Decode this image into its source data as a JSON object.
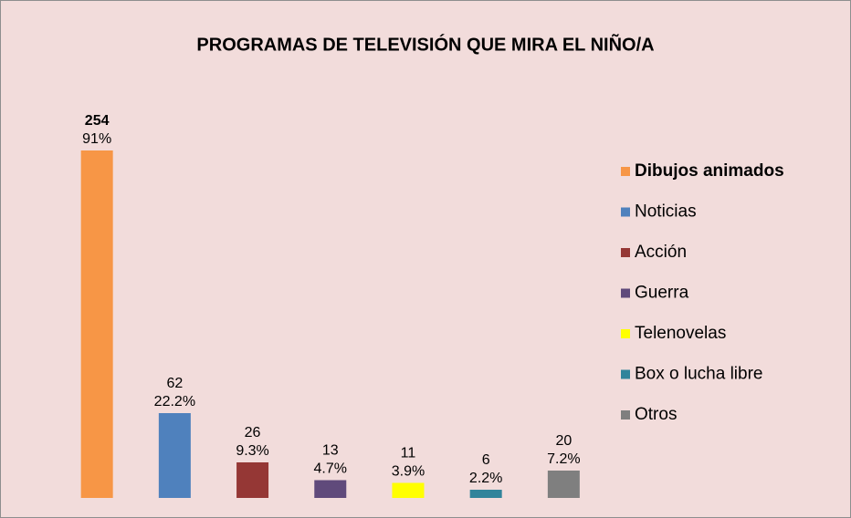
{
  "chart_data": {
    "type": "bar",
    "title": "PROGRAMAS DE TELEVISIÓN QUE MIRA EL NIÑO/A",
    "series": [
      {
        "name": "Dibujos animados",
        "color": "#f79646",
        "values": [
          254
        ],
        "percent_labels": [
          "91%"
        ]
      },
      {
        "name": "Noticias",
        "color": "#4f81bd",
        "values": [
          62
        ],
        "percent_labels": [
          "22.2%"
        ]
      },
      {
        "name": "Acción",
        "color": "#953735",
        "values": [
          26
        ],
        "percent_labels": [
          "9.3%"
        ]
      },
      {
        "name": "Guerra",
        "color": "#604a7b",
        "values": [
          13
        ],
        "percent_labels": [
          "4.7%"
        ]
      },
      {
        "name": "Telenovelas",
        "color": "#ffff00",
        "values": [
          11
        ],
        "percent_labels": [
          "3.9%"
        ]
      },
      {
        "name": "Box o lucha libre",
        "color": "#31849b",
        "values": [
          6
        ],
        "percent_labels": [
          "2.2%"
        ]
      },
      {
        "name": "Otros",
        "color": "#7f7f7f",
        "values": [
          20
        ],
        "percent_labels": [
          "7.2%"
        ]
      }
    ],
    "legend": "right"
  }
}
